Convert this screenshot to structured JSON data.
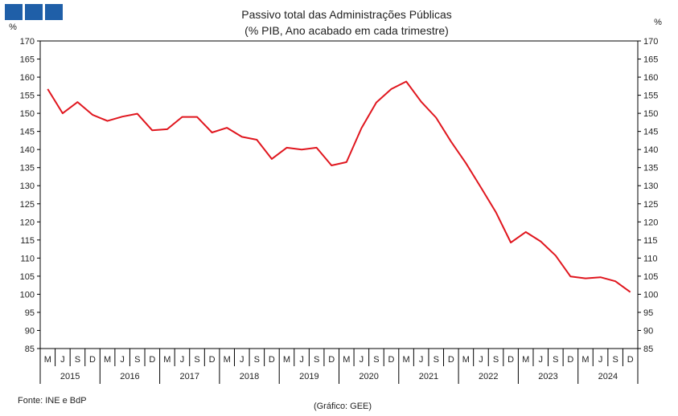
{
  "logo": {
    "color": "#1f5fa8",
    "squares": 3
  },
  "chart_data": {
    "type": "line",
    "title": "Passivo total das Administrações Públicas",
    "subtitle": "(% PIB, Ano acabado em cada trimestre)",
    "y_unit_left": "%",
    "y_unit_right": "%",
    "ylim": [
      85,
      170
    ],
    "yticks": [
      85,
      90,
      95,
      100,
      105,
      110,
      115,
      120,
      125,
      130,
      135,
      140,
      145,
      150,
      155,
      160,
      165,
      170
    ],
    "grid": false,
    "line_color": "#e0161e",
    "quarter_labels": [
      "M",
      "J",
      "S",
      "D"
    ],
    "years": [
      "2015",
      "2016",
      "2017",
      "2018",
      "2019",
      "2020",
      "2021",
      "2022",
      "2023",
      "2024"
    ],
    "series": [
      {
        "values": [
          156.7,
          150.0,
          153.1,
          149.6,
          147.9,
          149.1,
          149.9,
          145.3,
          145.6,
          149.0,
          149.0,
          144.7,
          146.0,
          143.5,
          142.7,
          137.4,
          140.5,
          140.0,
          140.5,
          135.6,
          136.5,
          145.9,
          153.0,
          156.7,
          158.8,
          153.2,
          148.8,
          142.2,
          136.2,
          129.5,
          122.7,
          114.3,
          117.2,
          114.6,
          110.7,
          104.9,
          104.4,
          104.7,
          103.6,
          100.6
        ]
      }
    ],
    "source_note": "Fonte: INE e BdP",
    "credit_note": "(Gráfico: GEE)"
  }
}
